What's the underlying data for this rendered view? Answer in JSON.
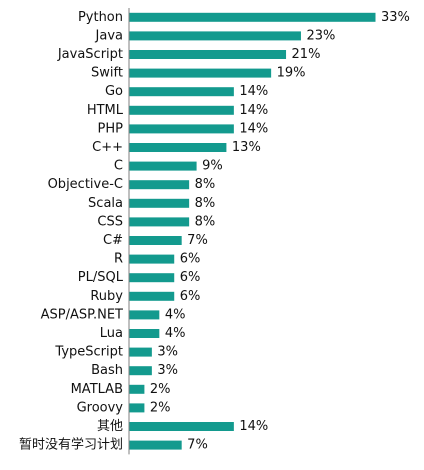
{
  "chart_data": {
    "type": "bar",
    "orientation": "horizontal",
    "categories": [
      "Python",
      "Java",
      "JavaScript",
      "Swift",
      "Go",
      "HTML",
      "PHP",
      "C++",
      "C",
      "Objective-C",
      "Scala",
      "CSS",
      "C#",
      "R",
      "PL/SQL",
      "Ruby",
      "ASP/ASP.NET",
      "Lua",
      "TypeScript",
      "Bash",
      "MATLAB",
      "Groovy",
      "其他",
      "暂时没有学习计划"
    ],
    "values": [
      33,
      23,
      21,
      19,
      14,
      14,
      14,
      13,
      9,
      8,
      8,
      8,
      7,
      6,
      6,
      6,
      4,
      4,
      3,
      3,
      2,
      2,
      14,
      7
    ],
    "value_labels": [
      "33%",
      "23%",
      "21%",
      "19%",
      "14%",
      "14%",
      "14%",
      "13%",
      "9%",
      "8%",
      "8%",
      "8%",
      "7%",
      "6%",
      "6%",
      "6%",
      "4%",
      "4%",
      "3%",
      "3%",
      "2%",
      "2%",
      "14%",
      "7%"
    ],
    "unit": "%",
    "bar_color": "#139A8E",
    "axis_color": "#7F7F7F",
    "grid": false,
    "legend": "none",
    "xlim": [
      0,
      33
    ]
  }
}
